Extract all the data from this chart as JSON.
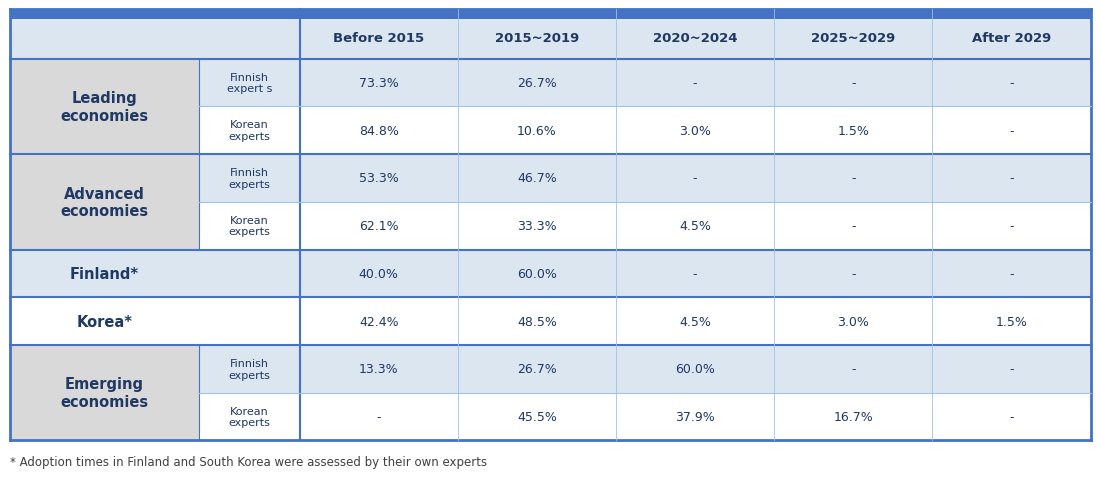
{
  "col_headers": [
    "Before 2015",
    "2015~2019",
    "2020~2024",
    "2025~2029",
    "After 2029"
  ],
  "footnote": "* Adoption times in Finland and South Korea were assessed by their own experts",
  "rows": [
    {
      "group_label": "Leading\neconomies",
      "sub_label": "Finnish\nexpert s",
      "values": [
        "73.3%",
        "26.7%",
        "-",
        "-",
        "-"
      ],
      "group_bg": "#d9d9d9",
      "sub_bg": "#dce6f1",
      "data_bg": "#dce6f1"
    },
    {
      "group_label": "",
      "sub_label": "Korean\nexperts",
      "values": [
        "84.8%",
        "10.6%",
        "3.0%",
        "1.5%",
        "-"
      ],
      "group_bg": "#d9d9d9",
      "sub_bg": "#ffffff",
      "data_bg": "#ffffff"
    },
    {
      "group_label": "Advanced\neconomies",
      "sub_label": "Finnish\nexperts",
      "values": [
        "53.3%",
        "46.7%",
        "-",
        "-",
        "-"
      ],
      "group_bg": "#d9d9d9",
      "sub_bg": "#dce6f1",
      "data_bg": "#dce6f1"
    },
    {
      "group_label": "",
      "sub_label": "Korean\nexperts",
      "values": [
        "62.1%",
        "33.3%",
        "4.5%",
        "-",
        "-"
      ],
      "group_bg": "#d9d9d9",
      "sub_bg": "#ffffff",
      "data_bg": "#ffffff"
    },
    {
      "group_label": "Finland*",
      "sub_label": null,
      "values": [
        "40.0%",
        "60.0%",
        "-",
        "-",
        "-"
      ],
      "group_bg": "#dce6f1",
      "sub_bg": null,
      "data_bg": "#dce6f1"
    },
    {
      "group_label": "Korea*",
      "sub_label": null,
      "values": [
        "42.4%",
        "48.5%",
        "4.5%",
        "3.0%",
        "1.5%"
      ],
      "group_bg": "#ffffff",
      "sub_bg": null,
      "data_bg": "#ffffff"
    },
    {
      "group_label": "Emerging\neconomies",
      "sub_label": "Finnish\nexperts",
      "values": [
        "13.3%",
        "26.7%",
        "60.0%",
        "-",
        "-"
      ],
      "group_bg": "#d9d9d9",
      "sub_bg": "#dce6f1",
      "data_bg": "#dce6f1"
    },
    {
      "group_label": "",
      "sub_label": "Korean\nexperts",
      "values": [
        "-",
        "45.5%",
        "37.9%",
        "16.7%",
        "-"
      ],
      "group_bg": "#d9d9d9",
      "sub_bg": "#ffffff",
      "data_bg": "#ffffff"
    }
  ],
  "group_spans": [
    {
      "start": 0,
      "end": 2,
      "label": "Leading\neconomies"
    },
    {
      "start": 2,
      "end": 4,
      "label": "Advanced\neconomies"
    },
    {
      "start": 4,
      "end": 5,
      "label": "Finland*"
    },
    {
      "start": 5,
      "end": 6,
      "label": "Korea*"
    },
    {
      "start": 6,
      "end": 8,
      "label": "Emerging\neconomies"
    }
  ],
  "group_dividers": [
    2,
    4,
    5,
    6
  ],
  "sub_dividers": [
    1,
    3,
    7
  ],
  "header_text_color": "#1f3864",
  "group_label_color": "#1f3864",
  "sub_label_color": "#1f3864",
  "value_color": "#1f3864",
  "border_color": "#4472c4",
  "light_border_color": "#9dc3e6",
  "header_bg": "#dce6f1",
  "fig_bg": "#ffffff"
}
